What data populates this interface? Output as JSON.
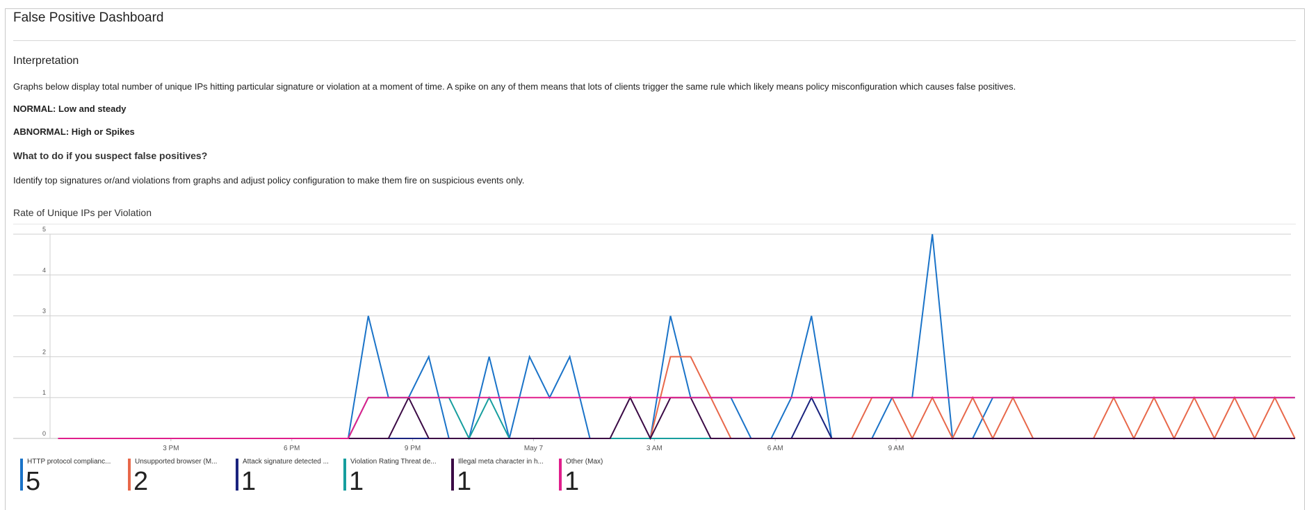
{
  "dashboard": {
    "title": "False Positive Dashboard",
    "interpretation_heading": "Interpretation",
    "description": "Graphs below display total number of unique IPs hitting particular signature or violation at a moment of time. A spike on any of them means that lots of clients trigger the same rule which likely means policy misconfiguration which causes false positives.",
    "normal": "NORMAL: Low and steady",
    "abnormal": "ABNORMAL: High or Spikes",
    "what_to_do": "What to do if you suspect false positives?",
    "identify": "Identify top signatures or/and violations from graphs and adjust policy configuration to make them fire on suspicious events only."
  },
  "chart_data": {
    "type": "line",
    "title": "Rate of Unique IPs per Violation",
    "ylim": [
      0,
      5
    ],
    "y_ticks": [
      0,
      1,
      2,
      3,
      4,
      5
    ],
    "x_range_hours": [
      12,
      42.8
    ],
    "x_ticks": [
      {
        "hour": 15,
        "label": "3 PM"
      },
      {
        "hour": 18,
        "label": "6 PM"
      },
      {
        "hour": 21,
        "label": "9 PM"
      },
      {
        "hour": 24,
        "label": "May 7"
      },
      {
        "hour": 27,
        "label": "3 AM"
      },
      {
        "hour": 30,
        "label": "6 AM"
      },
      {
        "hour": 33,
        "label": "9 AM"
      }
    ],
    "grid": true,
    "series": [
      {
        "name": "HTTP protocol complianc...",
        "color": "#1a73c8",
        "legend_value": "5",
        "points": [
          [
            12.2,
            0
          ],
          [
            19.4,
            0
          ],
          [
            19.9,
            3
          ],
          [
            20.4,
            1
          ],
          [
            20.9,
            1
          ],
          [
            21.4,
            2
          ],
          [
            21.9,
            0
          ],
          [
            22.4,
            0
          ],
          [
            22.9,
            2
          ],
          [
            23.4,
            0
          ],
          [
            23.9,
            2
          ],
          [
            24.4,
            1
          ],
          [
            24.9,
            2
          ],
          [
            25.4,
            0
          ],
          [
            26.9,
            0
          ],
          [
            27.4,
            3
          ],
          [
            27.9,
            1
          ],
          [
            28.9,
            1
          ],
          [
            29.4,
            0
          ],
          [
            29.9,
            0
          ],
          [
            30.4,
            1
          ],
          [
            30.9,
            3
          ],
          [
            31.4,
            0
          ],
          [
            32.4,
            0
          ],
          [
            32.9,
            1
          ],
          [
            33.4,
            1
          ],
          [
            33.9,
            5
          ],
          [
            34.4,
            0
          ],
          [
            34.9,
            0
          ],
          [
            35.4,
            1
          ],
          [
            35.9,
            1
          ],
          [
            36.4,
            1
          ],
          [
            36.9,
            1
          ],
          [
            37.4,
            1
          ],
          [
            37.9,
            1
          ],
          [
            38.4,
            1
          ],
          [
            38.9,
            1
          ],
          [
            39.4,
            1
          ],
          [
            39.9,
            1
          ],
          [
            40.4,
            1
          ],
          [
            40.9,
            1
          ],
          [
            41.4,
            1
          ],
          [
            41.9,
            1
          ],
          [
            42.4,
            1
          ],
          [
            42.9,
            1
          ]
        ]
      },
      {
        "name": "Unsupported browser (M...",
        "color": "#e8684a",
        "legend_value": "2",
        "points": [
          [
            12.2,
            0
          ],
          [
            26.9,
            0
          ],
          [
            27.4,
            2
          ],
          [
            27.9,
            2
          ],
          [
            28.4,
            1
          ],
          [
            28.9,
            0
          ],
          [
            31.9,
            0
          ],
          [
            32.4,
            1
          ],
          [
            32.9,
            1
          ],
          [
            33.4,
            0
          ],
          [
            33.9,
            1
          ],
          [
            34.4,
            0
          ],
          [
            34.9,
            1
          ],
          [
            35.4,
            0
          ],
          [
            35.9,
            1
          ],
          [
            36.4,
            0
          ],
          [
            37.9,
            0
          ],
          [
            38.4,
            1
          ],
          [
            38.9,
            0
          ],
          [
            39.4,
            1
          ],
          [
            39.9,
            0
          ],
          [
            40.4,
            1
          ],
          [
            40.9,
            0
          ],
          [
            41.4,
            1
          ],
          [
            41.9,
            0
          ],
          [
            42.4,
            1
          ],
          [
            42.9,
            0
          ]
        ]
      },
      {
        "name": "Attack signature detected ...",
        "color": "#1a237e",
        "legend_value": "1",
        "points": [
          [
            12.2,
            0
          ],
          [
            30.4,
            0
          ],
          [
            30.9,
            1
          ],
          [
            31.4,
            0
          ],
          [
            42.9,
            0
          ]
        ]
      },
      {
        "name": "Violation Rating Threat de...",
        "color": "#169e9e",
        "legend_value": "1",
        "points": [
          [
            12.2,
            0
          ],
          [
            19.4,
            0
          ],
          [
            19.9,
            1
          ],
          [
            21.9,
            1
          ],
          [
            22.4,
            0
          ],
          [
            22.9,
            1
          ],
          [
            23.4,
            0
          ],
          [
            42.9,
            0
          ]
        ]
      },
      {
        "name": "Illegal meta character in h...",
        "color": "#3b0a45",
        "legend_value": "1",
        "points": [
          [
            12.2,
            0
          ],
          [
            20.4,
            0
          ],
          [
            20.9,
            1
          ],
          [
            21.4,
            0
          ],
          [
            25.9,
            0
          ],
          [
            26.4,
            1
          ],
          [
            26.9,
            0
          ],
          [
            27.4,
            1
          ],
          [
            27.9,
            1
          ],
          [
            28.4,
            0
          ],
          [
            42.9,
            0
          ]
        ]
      },
      {
        "name": "Other (Max)",
        "color": "#e01e8c",
        "legend_value": "1",
        "points": [
          [
            12.2,
            0
          ],
          [
            19.4,
            0
          ],
          [
            19.9,
            1
          ],
          [
            42.9,
            1
          ]
        ]
      }
    ]
  }
}
